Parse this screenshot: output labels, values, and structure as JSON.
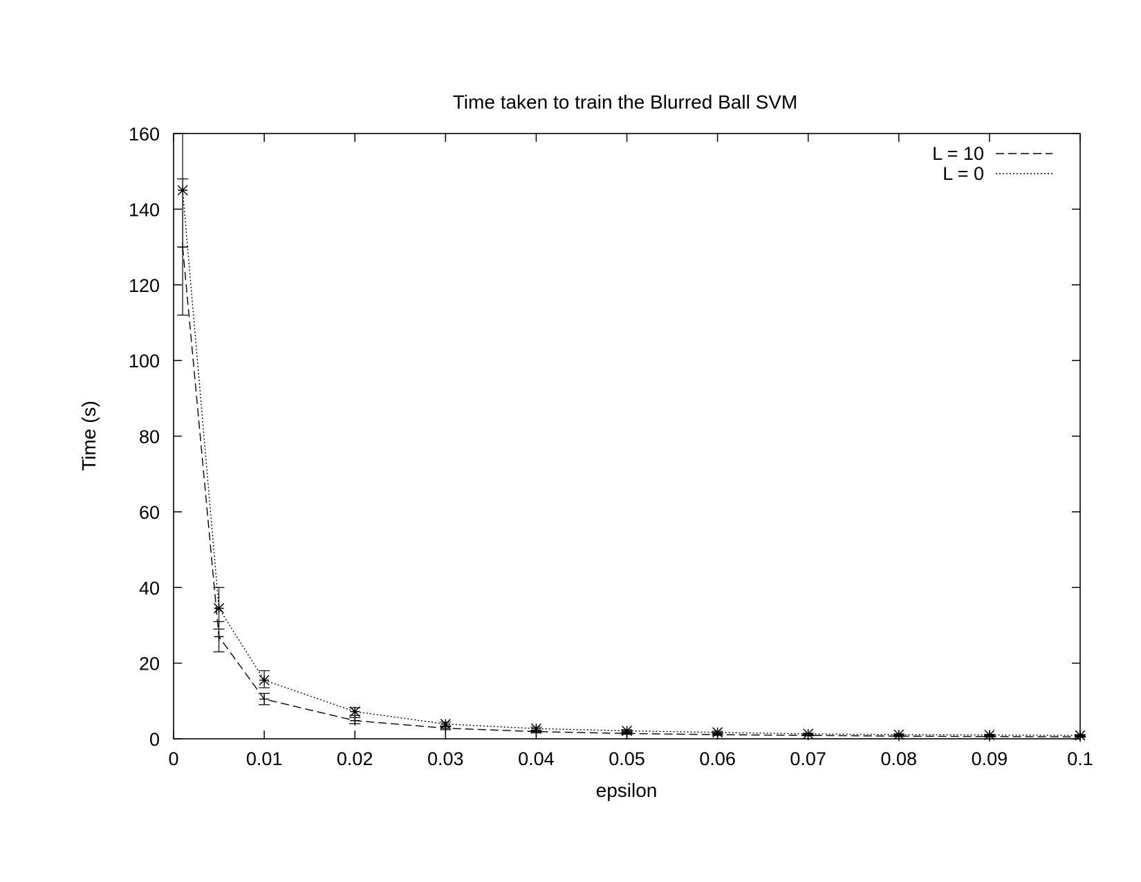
{
  "chart_data": {
    "type": "line",
    "title": "Time taken to train the Blurred Ball SVM",
    "xlabel": "epsilon",
    "ylabel": "Time (s)",
    "xlim": [
      0,
      0.1
    ],
    "ylim": [
      0,
      160
    ],
    "x_ticks": [
      "0",
      "0.01",
      "0.02",
      "0.03",
      "0.04",
      "0.05",
      "0.06",
      "0.07",
      "0.08",
      "0.09",
      "0.1"
    ],
    "y_ticks": [
      "0",
      "20",
      "40",
      "60",
      "80",
      "100",
      "120",
      "140",
      "160"
    ],
    "grid": false,
    "legend_position": "top-right",
    "series": [
      {
        "name": "L = 10",
        "line_style": "dashed",
        "marker": "plus",
        "points": [
          {
            "x": 0.001,
            "y": 130,
            "err_low": 112,
            "err_high": 148
          },
          {
            "x": 0.005,
            "y": 27,
            "err_low": 23,
            "err_high": 31
          },
          {
            "x": 0.01,
            "y": 10.5,
            "err_low": 9,
            "err_high": 12
          },
          {
            "x": 0.02,
            "y": 4.8,
            "err_low": 4,
            "err_high": 5.6
          },
          {
            "x": 0.03,
            "y": 2.8,
            "err_low": 2.4,
            "err_high": 3.2
          },
          {
            "x": 0.04,
            "y": 1.9,
            "err_low": 1.6,
            "err_high": 2.2
          },
          {
            "x": 0.05,
            "y": 1.4,
            "err_low": 1.2,
            "err_high": 1.6
          },
          {
            "x": 0.06,
            "y": 1.1,
            "err_low": 0.9,
            "err_high": 1.3
          },
          {
            "x": 0.07,
            "y": 0.9,
            "err_low": 0.8,
            "err_high": 1.0
          },
          {
            "x": 0.08,
            "y": 0.7,
            "err_low": 0.6,
            "err_high": 0.8
          },
          {
            "x": 0.09,
            "y": 0.6,
            "err_low": 0.5,
            "err_high": 0.7
          },
          {
            "x": 0.1,
            "y": 0.5,
            "err_low": 0.4,
            "err_high": 0.6
          }
        ]
      },
      {
        "name": "L = 0",
        "line_style": "dotted",
        "marker": "star",
        "points": [
          {
            "x": 0.001,
            "y": 145,
            "err_low": 130,
            "err_high": 160
          },
          {
            "x": 0.005,
            "y": 34.5,
            "err_low": 29,
            "err_high": 40
          },
          {
            "x": 0.01,
            "y": 15.5,
            "err_low": 13.5,
            "err_high": 18
          },
          {
            "x": 0.02,
            "y": 7.2,
            "err_low": 6.2,
            "err_high": 8.2
          },
          {
            "x": 0.03,
            "y": 3.9,
            "err_low": 3.4,
            "err_high": 4.4
          },
          {
            "x": 0.04,
            "y": 2.7,
            "err_low": 2.3,
            "err_high": 3.1
          },
          {
            "x": 0.05,
            "y": 2.1,
            "err_low": 1.8,
            "err_high": 2.4
          },
          {
            "x": 0.06,
            "y": 1.7,
            "err_low": 1.4,
            "err_high": 2.0
          },
          {
            "x": 0.07,
            "y": 1.3,
            "err_low": 1.1,
            "err_high": 1.5
          },
          {
            "x": 0.08,
            "y": 1.1,
            "err_low": 0.9,
            "err_high": 1.3
          },
          {
            "x": 0.09,
            "y": 1.0,
            "err_low": 0.8,
            "err_high": 1.2
          },
          {
            "x": 0.1,
            "y": 0.9,
            "err_low": 0.7,
            "err_high": 1.1
          }
        ]
      }
    ]
  }
}
